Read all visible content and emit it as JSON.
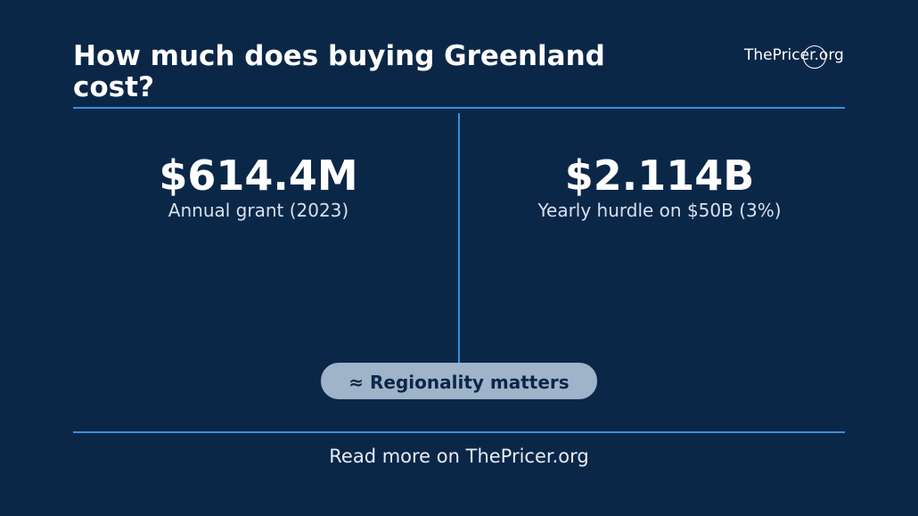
{
  "header": {
    "title": "How much does buying Greenland cost?",
    "brand": "ThePricer.org"
  },
  "stats": [
    {
      "value": "$614.4M",
      "label": "Annual grant (2023)"
    },
    {
      "value": "$2.114B",
      "label": "Yearly hurdle on $50B (3%)"
    }
  ],
  "badge": "≈ Regionality matters",
  "footer": "Read more on ThePricer.org"
}
